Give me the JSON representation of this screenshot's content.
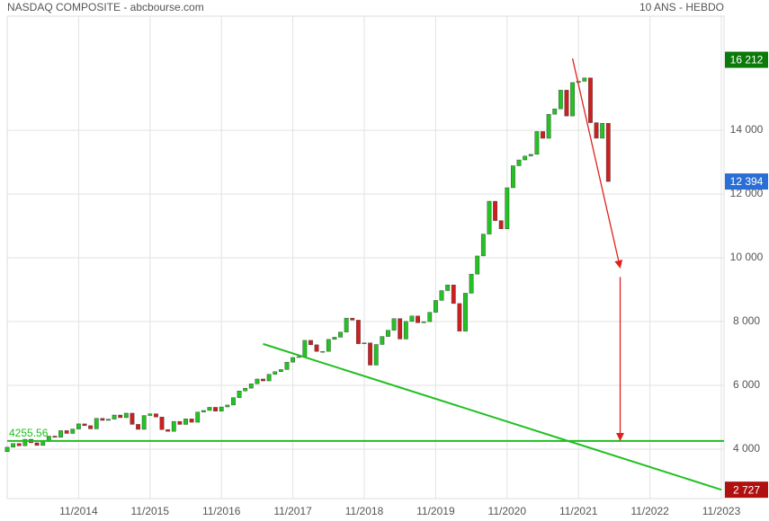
{
  "chart_data": {
    "type": "candlestick",
    "title": "NASDAQ COMPOSITE - abcbourse.com",
    "subtitle": "10 ANS - HEBDO",
    "x": [
      "11/2013",
      "12/2013",
      "01/2014",
      "02/2014",
      "03/2014",
      "04/2014",
      "05/2014",
      "06/2014",
      "07/2014",
      "08/2014",
      "09/2014",
      "10/2014",
      "11/2014",
      "12/2014",
      "01/2015",
      "02/2015",
      "03/2015",
      "04/2015",
      "05/2015",
      "06/2015",
      "07/2015",
      "08/2015",
      "09/2015",
      "10/2015",
      "11/2015",
      "12/2015",
      "01/2016",
      "02/2016",
      "03/2016",
      "04/2016",
      "05/2016",
      "06/2016",
      "07/2016",
      "08/2016",
      "09/2016",
      "10/2016",
      "11/2016",
      "12/2016",
      "01/2017",
      "02/2017",
      "03/2017",
      "04/2017",
      "05/2017",
      "06/2017",
      "07/2017",
      "08/2017",
      "09/2017",
      "10/2017",
      "11/2017",
      "12/2017",
      "01/2018",
      "02/2018",
      "03/2018",
      "04/2018",
      "05/2018",
      "06/2018",
      "07/2018",
      "08/2018",
      "09/2018",
      "10/2018",
      "11/2018",
      "12/2018",
      "01/2019",
      "02/2019",
      "03/2019",
      "04/2019",
      "05/2019",
      "06/2019",
      "07/2019",
      "08/2019",
      "09/2019",
      "10/2019",
      "11/2019",
      "12/2019",
      "01/2020",
      "02/2020",
      "03/2020",
      "04/2020",
      "05/2020",
      "06/2020",
      "07/2020",
      "08/2020",
      "09/2020",
      "10/2020",
      "11/2020",
      "12/2020",
      "01/2021",
      "02/2021",
      "03/2021",
      "04/2021",
      "05/2021",
      "06/2021",
      "07/2021",
      "08/2021",
      "09/2021",
      "10/2021",
      "11/2021",
      "12/2021",
      "01/2022",
      "02/2022",
      "03/2022",
      "04/2022"
    ],
    "open": [
      3920,
      4060,
      4177,
      4104,
      4308,
      4199,
      4115,
      4243,
      4408,
      4370,
      4580,
      4493,
      4631,
      4792,
      4736,
      4635,
      4964,
      4901,
      4941,
      5070,
      4987,
      5128,
      4777,
      4620,
      5054,
      5109,
      5007,
      4614,
      4558,
      4870,
      4775,
      4948,
      4843,
      5162,
      5213,
      5312,
      5189,
      5323,
      5383,
      5615,
      5825,
      5912,
      6048,
      6199,
      6140,
      6348,
      6429,
      6496,
      6728,
      6874,
      6903,
      7411,
      7273,
      7063,
      7066,
      7442,
      7510,
      7672,
      8110,
      8046,
      7306,
      7331,
      6635,
      7282,
      7533,
      7729,
      8095,
      7453,
      8006,
      8175,
      7963,
      7999,
      8292,
      8665,
      8973,
      9151,
      8567,
      7700,
      8890,
      9490,
      10059,
      10745,
      11775,
      11168,
      10912,
      12199,
      12888,
      13071,
      13192,
      13247,
      13962,
      13749,
      14504,
      14673,
      15259,
      14449,
      15498,
      15538,
      15645,
      14240,
      13751,
      14220
    ],
    "close": [
      4060,
      4177,
      4104,
      4308,
      4199,
      4115,
      4243,
      4408,
      4370,
      4580,
      4493,
      4631,
      4792,
      4736,
      4635,
      4964,
      4901,
      4941,
      5070,
      4987,
      5128,
      4777,
      4620,
      5054,
      5109,
      5007,
      4614,
      4558,
      4870,
      4775,
      4948,
      4843,
      5162,
      5213,
      5312,
      5189,
      5323,
      5383,
      5615,
      5825,
      5912,
      6048,
      6199,
      6140,
      6348,
      6429,
      6496,
      6728,
      6874,
      6903,
      7411,
      7273,
      7063,
      7066,
      7442,
      7510,
      7672,
      8110,
      8046,
      7306,
      7331,
      6635,
      7282,
      7533,
      7729,
      8095,
      7453,
      8006,
      8175,
      7963,
      7999,
      8292,
      8665,
      8973,
      9151,
      8567,
      7700,
      8890,
      9490,
      10059,
      10745,
      11775,
      11168,
      10912,
      12199,
      12888,
      13071,
      13192,
      13247,
      13962,
      13749,
      14504,
      14673,
      15259,
      14449,
      15498,
      15538,
      15645,
      14240,
      13751,
      14220,
      12394
    ],
    "color_up": "#22c322",
    "color_down": "#cc2020",
    "xlim": [
      "11/2013",
      "11/2023"
    ],
    "xticks": [
      "11/2014",
      "11/2015",
      "11/2016",
      "11/2017",
      "11/2018",
      "11/2019",
      "11/2020",
      "11/2021",
      "11/2022",
      "11/2023"
    ],
    "ylim": [
      2450,
      17580
    ],
    "yticks": [
      {
        "value": 4000,
        "label": "4 000"
      },
      {
        "value": 6000,
        "label": "6 000"
      },
      {
        "value": 8000,
        "label": "8 000"
      },
      {
        "value": 10000,
        "label": "10 000"
      },
      {
        "value": 12000,
        "label": "12 000"
      },
      {
        "value": 14000,
        "label": "14 000"
      }
    ],
    "grid": true,
    "hline": {
      "value": 4255.56,
      "color": "#1fbf1f"
    },
    "trendline": {
      "x": [
        "06/2017",
        "11/2023"
      ],
      "values": [
        7300,
        2727
      ],
      "color": "#1fbf1f"
    },
    "arrows": [
      {
        "x": [
          "10/2021",
          "06/2022"
        ],
        "values": [
          16250,
          9690
        ],
        "color": "#e02020"
      },
      {
        "x": [
          "06/2022",
          "06/2022"
        ],
        "values": [
          9400,
          4280
        ],
        "color": "#e02020"
      }
    ],
    "badges": [
      {
        "value": 16212,
        "label": "16 212",
        "color": "#0b7a0b"
      },
      {
        "value": 12394,
        "label": "12 394",
        "color": "#2b6fd6"
      },
      {
        "value": 2727,
        "label": "2 727",
        "color": "#b01010"
      }
    ]
  }
}
